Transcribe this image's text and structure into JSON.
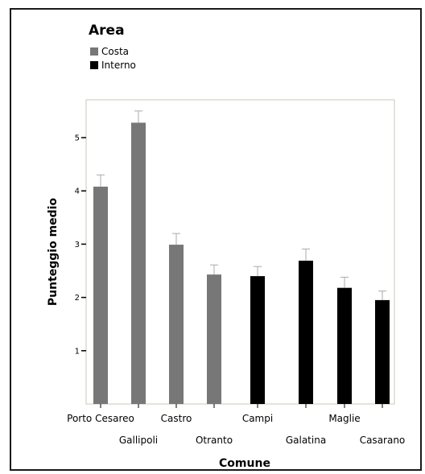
{
  "chart_data": {
    "type": "bar",
    "xlabel": "Comune",
    "ylabel": "Punteggio medio",
    "ylim": [
      0,
      5.6
    ],
    "yticks": [
      1,
      2,
      3,
      4,
      5
    ],
    "legend": {
      "title": "Area",
      "placement": "top-left",
      "entries": [
        {
          "name": "Costa",
          "color": "#777777"
        },
        {
          "name": "Interno",
          "color": "#000000"
        }
      ]
    },
    "categories": [
      "Porto Cesareo",
      "Gallipoli",
      "Castro",
      "Otranto",
      "Campi",
      "Galatina",
      "Maglie",
      "Casarano"
    ],
    "series": [
      {
        "name": "Costa",
        "color": "#777777",
        "values": [
          4.08,
          5.28,
          2.99,
          2.43,
          null,
          null,
          null,
          null
        ],
        "errors": [
          0.22,
          0.22,
          0.21,
          0.18,
          null,
          null,
          null,
          null
        ]
      },
      {
        "name": "Interno",
        "color": "#000000",
        "values": [
          null,
          null,
          null,
          null,
          2.4,
          2.69,
          2.18,
          1.95
        ],
        "errors": [
          null,
          null,
          null,
          null,
          0.18,
          0.22,
          0.2,
          0.17
        ]
      }
    ],
    "grid": false
  }
}
